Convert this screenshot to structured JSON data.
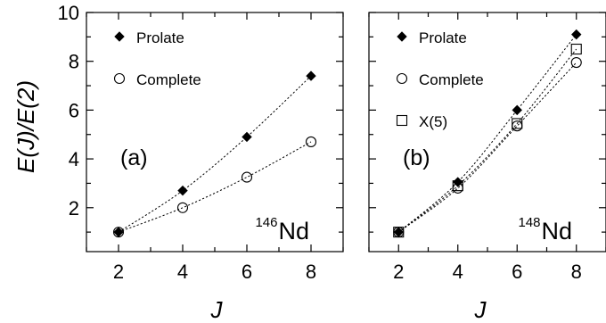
{
  "figure": {
    "ylabel": "E(J)/E(2)",
    "xlabel": "J"
  },
  "chart_data": [
    {
      "type": "line",
      "panel_label": "(a)",
      "nucleus": {
        "mass": "146",
        "symbol": "Nd"
      },
      "xlabel": "J",
      "ylabel": "E(J)/E(2)",
      "xlim": [
        1,
        9
      ],
      "ylim": [
        0.2,
        10
      ],
      "xticks": [
        2,
        4,
        6,
        8
      ],
      "yticks": [
        2,
        4,
        6,
        8,
        10
      ],
      "legend_position": "top-left",
      "series": [
        {
          "name": "Prolate",
          "marker": "filled-diamond",
          "x": [
            2,
            4,
            6,
            8
          ],
          "y": [
            1.0,
            2.7,
            4.9,
            7.4
          ]
        },
        {
          "name": "Complete",
          "marker": "open-circle",
          "x": [
            2,
            4,
            6,
            8
          ],
          "y": [
            1.0,
            2.0,
            3.25,
            4.7
          ]
        }
      ]
    },
    {
      "type": "line",
      "panel_label": "(b)",
      "nucleus": {
        "mass": "148",
        "symbol": "Nd"
      },
      "xlabel": "J",
      "ylabel": "E(J)/E(2)",
      "xlim": [
        1,
        9
      ],
      "ylim": [
        0.2,
        10
      ],
      "xticks": [
        2,
        4,
        6,
        8
      ],
      "yticks": [
        2,
        4,
        6,
        8,
        10
      ],
      "legend_position": "top-left",
      "series": [
        {
          "name": "Prolate",
          "marker": "filled-diamond",
          "x": [
            2,
            4,
            6,
            8
          ],
          "y": [
            1.0,
            3.05,
            6.0,
            9.1
          ]
        },
        {
          "name": "Complete",
          "marker": "open-circle",
          "x": [
            2,
            4,
            6,
            8
          ],
          "y": [
            1.0,
            2.8,
            5.35,
            7.95
          ]
        },
        {
          "name": "X(5)",
          "marker": "open-square",
          "x": [
            2,
            4,
            6,
            8
          ],
          "y": [
            1.0,
            2.9,
            5.45,
            8.5
          ]
        }
      ]
    }
  ]
}
